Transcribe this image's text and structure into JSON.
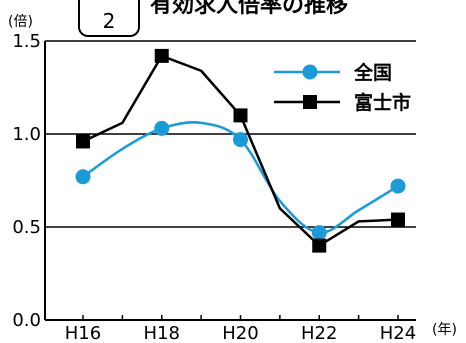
{
  "header": {
    "figure_number": "2",
    "title": "有効求人倍率の推移",
    "y_unit": "(倍)",
    "x_unit": "(年)"
  },
  "chart_data": {
    "type": "line",
    "title": "有効求人倍率の推移",
    "xlabel": "(年)",
    "ylabel": "(倍)",
    "x": [
      "H16",
      "H17",
      "H18",
      "H19",
      "H20",
      "H21",
      "H22",
      "H23",
      "H24"
    ],
    "x_tick_labels": [
      "H16",
      "H18",
      "H20",
      "H22",
      "H24"
    ],
    "y_ticks": [
      0.0,
      0.5,
      1.0,
      1.5
    ],
    "y_tick_labels": [
      "0.0",
      "0.5",
      "1.0",
      "1.5"
    ],
    "ylim": [
      0,
      1.5
    ],
    "grid": "horizontal",
    "legend_position": "top-right",
    "series": [
      {
        "name": "全国",
        "color": "#1a9ad6",
        "marker": "circle",
        "smooth": true,
        "values": [
          0.77,
          0.92,
          1.03,
          1.06,
          0.97,
          0.64,
          0.47,
          0.59,
          0.72
        ]
      },
      {
        "name": "富士市",
        "color": "#000000",
        "marker": "square",
        "smooth": false,
        "values": [
          0.96,
          1.06,
          1.42,
          1.34,
          1.1,
          0.6,
          0.4,
          0.53,
          0.54
        ]
      }
    ]
  }
}
